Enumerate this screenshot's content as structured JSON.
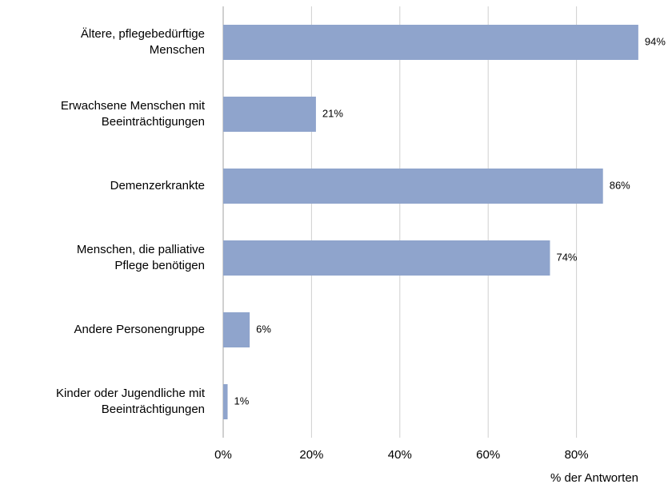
{
  "chart_data": {
    "type": "bar",
    "orientation": "horizontal",
    "categories": [
      [
        "Ältere, pflegebedürftige",
        "Menschen"
      ],
      [
        "Erwachsene Menschen mit",
        "Beeinträchtigungen"
      ],
      [
        "Demenzerkrankte"
      ],
      [
        "Menschen, die palliative",
        "Pflege benötigen"
      ],
      [
        "Andere Personengruppe"
      ],
      [
        "Kinder oder Jugendliche mit",
        "Beeinträchtigungen"
      ]
    ],
    "values": [
      94,
      21,
      86,
      74,
      6,
      1
    ],
    "value_labels": [
      "94%",
      "21%",
      "86%",
      "74%",
      "6%",
      "1%"
    ],
    "color": "#8fa4cc",
    "xlim": [
      0,
      100
    ],
    "xticks": [
      {
        "value": 0,
        "label": "0%"
      },
      {
        "value": 20,
        "label": "20%"
      },
      {
        "value": 40,
        "label": "40%"
      },
      {
        "value": 60,
        "label": "60%"
      },
      {
        "value": 80,
        "label": "80%"
      }
    ],
    "xlabel": "% der Antworten",
    "grid": true
  }
}
